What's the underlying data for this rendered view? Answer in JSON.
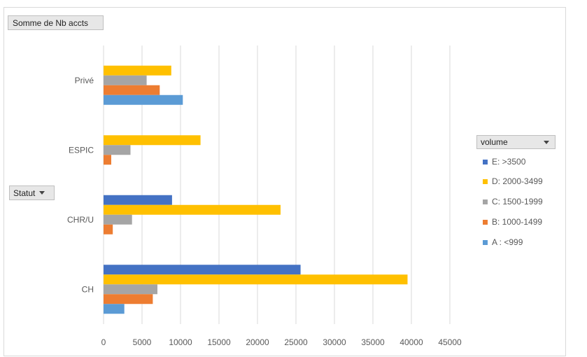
{
  "field_button": "Somme de Nb accts",
  "row_field_button": "Statut",
  "legend_title": "volume",
  "colors": {
    "E: >3500": "#4472c4",
    "D: 2000-3499": "#ffc000",
    "C: 1500-1999": "#a5a5a5",
    "B: 1000-1499": "#ed7d31",
    "A : <999": "#5b9bd5"
  },
  "legend_items": [
    "E: >3500",
    "D: 2000-3499",
    "C: 1500-1999",
    "B: 1000-1499",
    "A : <999"
  ],
  "chart_data": {
    "type": "bar",
    "orientation": "horizontal",
    "categories": [
      "CH",
      "CHR/U",
      "ESPIC",
      "Privé"
    ],
    "series": [
      {
        "name": "A : <999",
        "values": [
          2700,
          null,
          null,
          10300
        ]
      },
      {
        "name": "B: 1000-1499",
        "values": [
          6400,
          1200,
          1000,
          7300
        ]
      },
      {
        "name": "C: 1500-1999",
        "values": [
          7000,
          3700,
          3500,
          5600
        ]
      },
      {
        "name": "D: 2000-3499",
        "values": [
          39500,
          23000,
          12600,
          8800
        ]
      },
      {
        "name": "E: >3500",
        "values": [
          25600,
          8900,
          null,
          null
        ]
      }
    ],
    "xlim": [
      0,
      45000
    ],
    "xticks": [
      0,
      5000,
      10000,
      15000,
      20000,
      25000,
      30000,
      35000,
      40000,
      45000
    ],
    "grid": true,
    "legend_position": "right"
  }
}
